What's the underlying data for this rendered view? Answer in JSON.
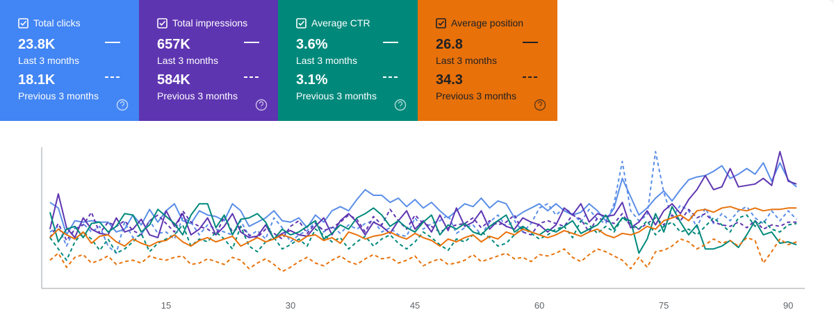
{
  "cards": [
    {
      "title": "Total clicks",
      "current_value": "23.8K",
      "current_label": "Last 3 months",
      "previous_value": "18.1K",
      "previous_label": "Previous 3 months",
      "color": "#4285f4",
      "text_color": "#ffffff"
    },
    {
      "title": "Total impressions",
      "current_value": "657K",
      "current_label": "Last 3 months",
      "previous_value": "584K",
      "previous_label": "Previous 3 months",
      "color": "#5e35b1",
      "text_color": "#ffffff"
    },
    {
      "title": "Average CTR",
      "current_value": "3.6%",
      "current_label": "Last 3 months",
      "previous_value": "3.1%",
      "previous_label": "Previous 3 months",
      "color": "#00897b",
      "text_color": "#ffffff"
    },
    {
      "title": "Average position",
      "current_value": "26.8",
      "current_label": "Last 3 months",
      "previous_value": "34.3",
      "previous_label": "Previous 3 months",
      "color": "#e8710a",
      "text_color": "#202124"
    }
  ],
  "chart_data": {
    "type": "line",
    "x": [
      1,
      2,
      3,
      4,
      5,
      6,
      7,
      8,
      9,
      10,
      11,
      12,
      13,
      14,
      15,
      16,
      17,
      18,
      19,
      20,
      21,
      22,
      23,
      24,
      25,
      26,
      27,
      28,
      29,
      30,
      31,
      32,
      33,
      34,
      35,
      36,
      37,
      38,
      39,
      40,
      41,
      42,
      43,
      44,
      45,
      46,
      47,
      48,
      49,
      50,
      51,
      52,
      53,
      54,
      55,
      56,
      57,
      58,
      59,
      60,
      61,
      62,
      63,
      64,
      65,
      66,
      67,
      68,
      69,
      70,
      71,
      72,
      73,
      74,
      75,
      76,
      77,
      78,
      79,
      80,
      81,
      82,
      83,
      84,
      85,
      86,
      87,
      88,
      89,
      90,
      91
    ],
    "xlim": [
      0,
      92
    ],
    "xticks": [
      15,
      30,
      45,
      60,
      75,
      90
    ],
    "ylim": [
      0,
      100
    ],
    "series": [
      {
        "color": "#5a8ee8",
        "dashed": false,
        "values": [
          61,
          57,
          38,
          48,
          47,
          48,
          47,
          47,
          40,
          42,
          52,
          45,
          56,
          47,
          55,
          60,
          48,
          46,
          55,
          52,
          51,
          48,
          60,
          55,
          44,
          47,
          50,
          55,
          48,
          47,
          50,
          43,
          52,
          47,
          55,
          58,
          55,
          63,
          70,
          66,
          66,
          61,
          64,
          58,
          63,
          57,
          61,
          55,
          50,
          55,
          60,
          58,
          64,
          57,
          62,
          60,
          50,
          54,
          57,
          60,
          55,
          60,
          55,
          52,
          54,
          60,
          55,
          48,
          57,
          78,
          65,
          52,
          57,
          64,
          69,
          62,
          70,
          77,
          79,
          80,
          83,
          87,
          78,
          81,
          85,
          81,
          89,
          76,
          89,
          77,
          72
        ]
      },
      {
        "color": "#5a8ee8",
        "dashed": true,
        "values": [
          40,
          44,
          30,
          43,
          46,
          40,
          44,
          30,
          25,
          47,
          36,
          38,
          48,
          39,
          40,
          35,
          50,
          47,
          38,
          45,
          42,
          40,
          38,
          48,
          37,
          41,
          35,
          50,
          43,
          33,
          38,
          41,
          47,
          40,
          44,
          39,
          45,
          42,
          46,
          48,
          40,
          43,
          38,
          37,
          50,
          42,
          46,
          48,
          52,
          39,
          43,
          45,
          38,
          47,
          52,
          44,
          48,
          40,
          46,
          57,
          60,
          52,
          57,
          53,
          47,
          56,
          49,
          46,
          60,
          90,
          55,
          48,
          52,
          97,
          68,
          50,
          59,
          55,
          43,
          57,
          46,
          53,
          48,
          55,
          58,
          50,
          46,
          55,
          48,
          55,
          49
        ]
      },
      {
        "color": "#5e35b1",
        "dashed": false,
        "values": [
          42,
          67,
          43,
          36,
          50,
          42,
          39,
          38,
          50,
          40,
          42,
          49,
          38,
          36,
          55,
          44,
          53,
          38,
          42,
          50,
          38,
          44,
          53,
          40,
          36,
          37,
          45,
          35,
          39,
          41,
          38,
          37,
          44,
          50,
          38,
          48,
          53,
          47,
          38,
          47,
          44,
          39,
          48,
          55,
          42,
          48,
          40,
          52,
          41,
          57,
          44,
          47,
          55,
          42,
          48,
          44,
          42,
          50,
          47,
          45,
          40,
          45,
          57,
          52,
          60,
          47,
          53,
          51,
          52,
          61,
          43,
          47,
          55,
          45,
          55,
          60,
          53,
          63,
          70,
          80,
          70,
          72,
          85,
          72,
          73,
          74,
          78,
          73,
          97,
          76,
          74
        ]
      },
      {
        "color": "#5e35b1",
        "dashed": true,
        "values": [
          36,
          46,
          34,
          42,
          45,
          54,
          39,
          47,
          44,
          48,
          41,
          38,
          48,
          52,
          46,
          40,
          55,
          47,
          44,
          42,
          38,
          51,
          40,
          44,
          38,
          36,
          42,
          39,
          35,
          44,
          48,
          39,
          46,
          41,
          43,
          47,
          52,
          49,
          40,
          51,
          45,
          56,
          48,
          42,
          52,
          46,
          44,
          40,
          43,
          45,
          46,
          50,
          43,
          48,
          45,
          47,
          52,
          40,
          38,
          46,
          48,
          46,
          44,
          52,
          49,
          40,
          50,
          48,
          46,
          53,
          44,
          42,
          46,
          50,
          45,
          52,
          48,
          56,
          50,
          53,
          47,
          45,
          44,
          47,
          43,
          48,
          42,
          45,
          44,
          47,
          47
        ]
      },
      {
        "color": "#00897b",
        "dashed": false,
        "values": [
          54,
          33,
          42,
          44,
          36,
          46,
          47,
          40,
          44,
          53,
          52,
          40,
          45,
          56,
          51,
          46,
          38,
          52,
          60,
          60,
          43,
          52,
          38,
          49,
          50,
          53,
          47,
          35,
          42,
          38,
          40,
          44,
          48,
          35,
          39,
          45,
          42,
          50,
          53,
          57,
          52,
          44,
          48,
          43,
          40,
          47,
          52,
          38,
          45,
          42,
          46,
          40,
          38,
          44,
          48,
          52,
          40,
          44,
          40,
          38,
          42,
          40,
          44,
          48,
          39,
          42,
          45,
          52,
          42,
          50,
          48,
          25,
          35,
          53,
          40,
          58,
          47,
          38,
          45,
          28,
          28,
          30,
          34,
          29,
          38,
          48,
          38,
          40,
          32,
          33,
          31
        ]
      },
      {
        "color": "#00897b",
        "dashed": true,
        "values": [
          36,
          28,
          20,
          33,
          40,
          35,
          27,
          35,
          25,
          28,
          33,
          39,
          26,
          32,
          35,
          38,
          45,
          30,
          35,
          33,
          40,
          35,
          28,
          44,
          30,
          26,
          33,
          36,
          28,
          31,
          35,
          30,
          42,
          38,
          33,
          36,
          28,
          33,
          37,
          30,
          35,
          38,
          32,
          28,
          33,
          40,
          36,
          31,
          27,
          35,
          33,
          38,
          40,
          36,
          30,
          32,
          38,
          43,
          39,
          35,
          38,
          42,
          44,
          36,
          48,
          45,
          39,
          44,
          40,
          50,
          46,
          42,
          48,
          38,
          44,
          47,
          40,
          42,
          38,
          44,
          50,
          45,
          40,
          50,
          52,
          44,
          48,
          42,
          40,
          45,
          46
        ]
      },
      {
        "color": "#e8710a",
        "dashed": false,
        "values": [
          36,
          42,
          38,
          35,
          40,
          32,
          37,
          38,
          33,
          30,
          35,
          32,
          30,
          33,
          34,
          38,
          33,
          30,
          34,
          36,
          33,
          35,
          37,
          30,
          33,
          36,
          33,
          35,
          38,
          36,
          33,
          37,
          38,
          34,
          36,
          32,
          40,
          38,
          35,
          37,
          38,
          40,
          37,
          35,
          39,
          36,
          34,
          30,
          35,
          33,
          36,
          38,
          33,
          37,
          35,
          40,
          38,
          42,
          40,
          38,
          36,
          38,
          41,
          39,
          37,
          40,
          42,
          38,
          36,
          39,
          38,
          40,
          44,
          42,
          48,
          50,
          52,
          48,
          55,
          56,
          54,
          57,
          58,
          56,
          55,
          57,
          55,
          56,
          56,
          57,
          57
        ]
      },
      {
        "color": "#e8710a",
        "dashed": true,
        "values": [
          20,
          25,
          15,
          22,
          24,
          18,
          20,
          23,
          17,
          19,
          20,
          18,
          23,
          21,
          20,
          22,
          23,
          17,
          18,
          21,
          19,
          17,
          22,
          20,
          14,
          18,
          21,
          17,
          12,
          15,
          19,
          22,
          18,
          16,
          20,
          23,
          19,
          17,
          21,
          24,
          21,
          22,
          18,
          20,
          23,
          16,
          19,
          21,
          17,
          18,
          20,
          24,
          19,
          21,
          23,
          25,
          21,
          22,
          19,
          24,
          23,
          25,
          28,
          22,
          19,
          24,
          28,
          26,
          23,
          20,
          14,
          22,
          15,
          26,
          27,
          30,
          35,
          33,
          28,
          31,
          35,
          32,
          34,
          30,
          36,
          34,
          18,
          26,
          35,
          31,
          33
        ]
      }
    ]
  }
}
